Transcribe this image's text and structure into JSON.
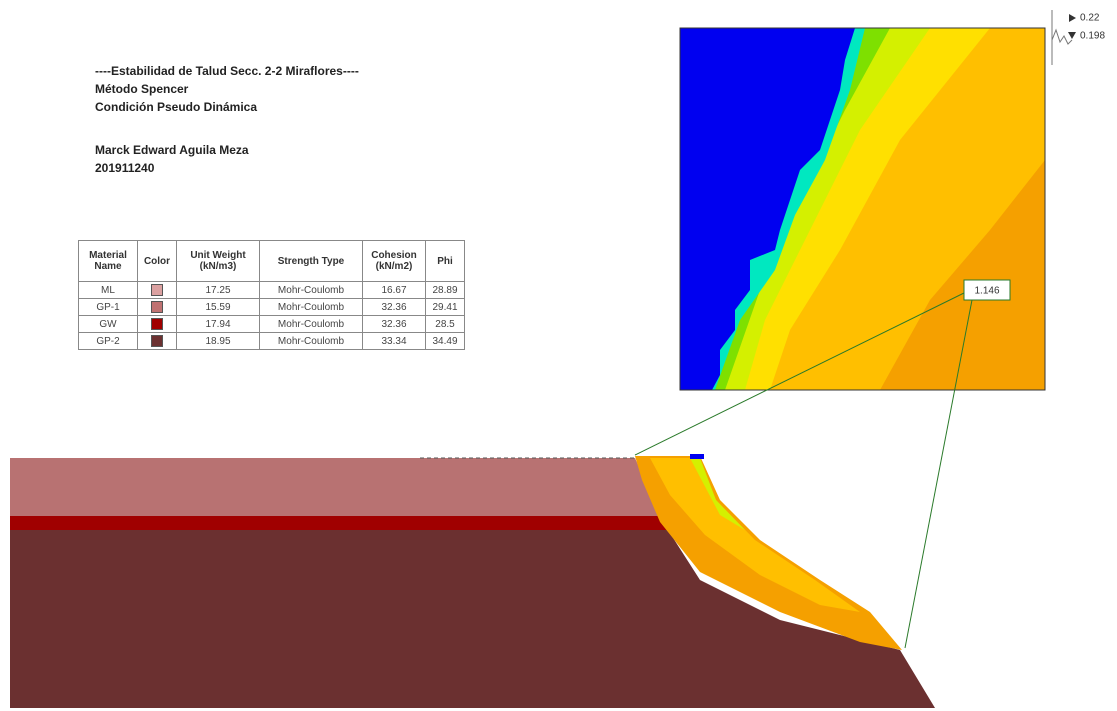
{
  "header": {
    "lines": [
      "----Estabilidad de Talud Secc. 2-2 Miraflores----",
      "Método Spencer",
      "Condición Pseudo Dinámica"
    ],
    "author": "Marck Edward Aguila Meza",
    "id": "201911240"
  },
  "table": {
    "columns": [
      "Material Name",
      "Color",
      "Unit Weight (kN/m3)",
      "Strength Type",
      "Cohesion (kN/m2)",
      "Phi"
    ],
    "rows": [
      {
        "name": "ML",
        "color": "#dba0a0",
        "unit_weight": 17.25,
        "strength": "Mohr-Coulomb",
        "cohesion": 16.67,
        "phi": 28.89
      },
      {
        "name": "GP-1",
        "color": "#c07272",
        "unit_weight": 15.59,
        "strength": "Mohr-Coulomb",
        "cohesion": 32.36,
        "phi": 29.41
      },
      {
        "name": "GW",
        "color": "#a00000",
        "unit_weight": 17.94,
        "strength": "Mohr-Coulomb",
        "cohesion": 32.36,
        "phi": 28.5
      },
      {
        "name": "GP-2",
        "color": "#6b3030",
        "unit_weight": 18.95,
        "strength": "Mohr-Coulomb",
        "cohesion": 33.34,
        "phi": 34.49
      }
    ]
  },
  "factor_of_safety": 1.146,
  "scale": {
    "max": 0.22,
    "min": 0.198
  }
}
